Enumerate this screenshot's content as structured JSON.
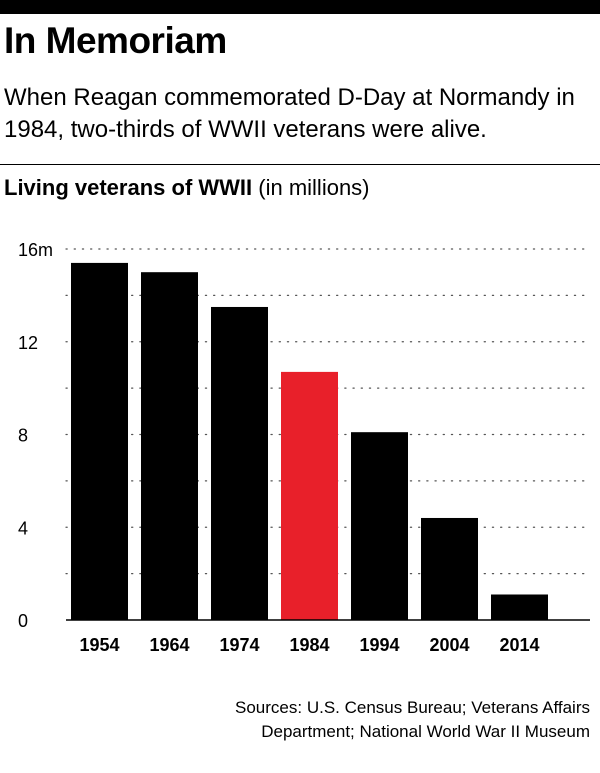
{
  "header": {
    "title": "In Memoriam",
    "subtitle": "When Reagan commemorated D-Day at Normandy in 1984, two-thirds of WWII veterans were alive."
  },
  "chart_header": {
    "title": "Living veterans of WWII",
    "unit": "(in millions)"
  },
  "source": {
    "line1": "Sources: U.S. Census Bureau; Veterans Affairs",
    "line2": "Department; National World War II Museum"
  },
  "colors": {
    "bar": "#000000",
    "highlight": "#e8202a",
    "grid": "#555555"
  },
  "chart_data": {
    "type": "bar",
    "categories": [
      "1954",
      "1964",
      "1974",
      "1984",
      "1994",
      "2004",
      "2014"
    ],
    "values": [
      15.4,
      15.0,
      13.5,
      10.7,
      8.1,
      4.4,
      1.1
    ],
    "highlight_index": 3,
    "ylim": [
      0,
      16
    ],
    "yticks": [
      0,
      4,
      8,
      12,
      16
    ],
    "ytick_labels": [
      "0",
      "4",
      "8",
      "12",
      "16m"
    ],
    "minor_grid_step": 2,
    "grid": true,
    "title": "Living veterans of WWII (in millions)"
  }
}
